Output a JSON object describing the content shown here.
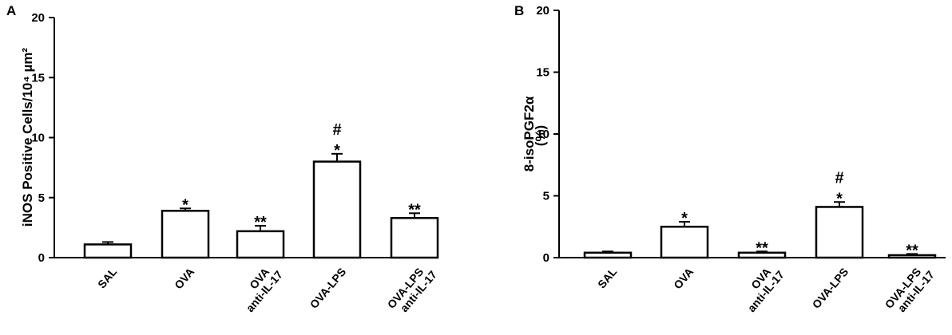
{
  "chart_data": [
    {
      "type": "bar",
      "panel_label": "A",
      "ylabel": "iNOS Positive Cells/10⁴ µm²",
      "ylim": [
        0,
        20
      ],
      "yticks": [
        "0",
        "5",
        "10",
        "15",
        "20"
      ],
      "categories": [
        [
          "SAL"
        ],
        [
          "OVA"
        ],
        [
          "OVA",
          "anti-IL-17"
        ],
        [
          "OVA-LPS"
        ],
        [
          "OVA-LPS",
          "anti-IL-17"
        ]
      ],
      "values": [
        1.1,
        3.9,
        2.2,
        8.0,
        3.3
      ],
      "errors": [
        0.2,
        0.2,
        0.45,
        0.65,
        0.4
      ],
      "significance": [
        [],
        [
          "*"
        ],
        [
          "**"
        ],
        [
          "#",
          "*"
        ],
        [
          "**"
        ]
      ]
    },
    {
      "type": "bar",
      "panel_label": "B",
      "ylabel": "8-isoPGF2α",
      "ylabel2": "(%)",
      "ylim": [
        0,
        20
      ],
      "yticks": [
        "0",
        "5",
        "10",
        "15",
        "20"
      ],
      "categories": [
        [
          "SAL"
        ],
        [
          "OVA"
        ],
        [
          "OVA",
          "anti-IL-17"
        ],
        [
          "OVA-LPS"
        ],
        [
          "OVA-LPS",
          "anti-IL-17"
        ]
      ],
      "values": [
        0.4,
        2.5,
        0.4,
        4.1,
        0.2
      ],
      "errors": [
        0.1,
        0.4,
        0.1,
        0.4,
        0.1
      ],
      "significance": [
        [],
        [
          "*"
        ],
        [
          "**"
        ],
        [
          "#",
          "*"
        ],
        [
          "**"
        ]
      ]
    }
  ]
}
